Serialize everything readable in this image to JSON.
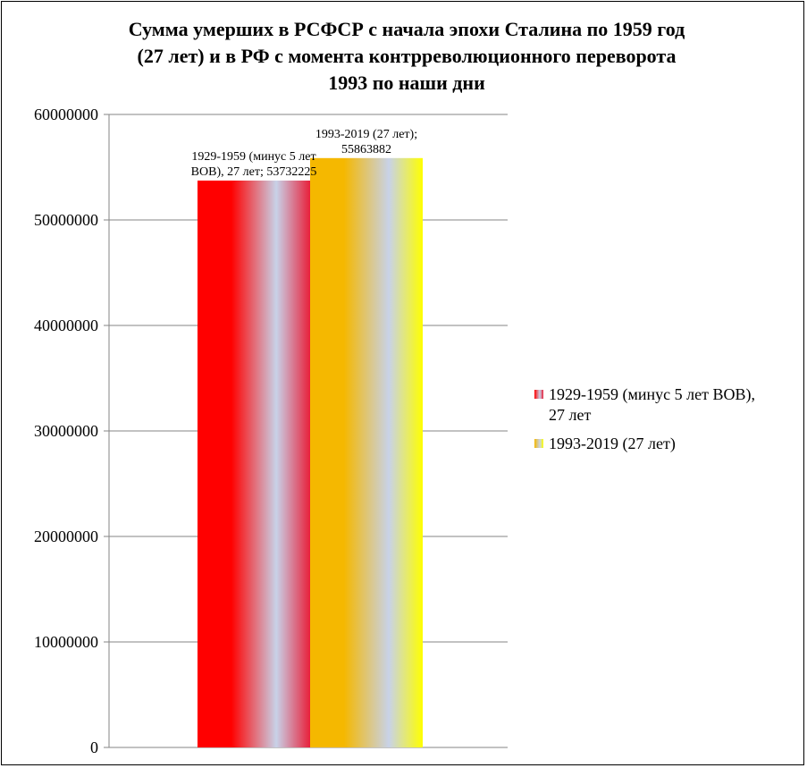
{
  "title_lines": [
    "Сумма умерших в РСФСР с начала эпохи Сталина по 1959 год",
    "(27 лет) и в РФ с момента контрреволюционного переворота",
    "1993 по наши дни"
  ],
  "chart_data": {
    "type": "bar",
    "title": "Сумма умерших в РСФСР с начала эпохи Сталина по 1959 год (27 лет) и в РФ с момента контрреволюционного переворота 1993 по наши дни",
    "ylim": [
      0,
      60000000
    ],
    "yticks": [
      "0",
      "10000000",
      "20000000",
      "30000000",
      "40000000",
      "50000000",
      "60000000"
    ],
    "grid": true,
    "legend_position": "right",
    "series": [
      {
        "name": "1929-1959 (минус 5 лет ВОВ), 27 лет",
        "value": 53732225,
        "label_lines": [
          "1929-1959 (минус 5 лет",
          "ВОВ), 27 лет; 53732225"
        ],
        "colors": [
          "#ff0000",
          "#c8d2e8",
          "#e8203a"
        ]
      },
      {
        "name": "1993-2019 (27 лет)",
        "value": 55863882,
        "label_lines": [
          "1993-2019 (27 лет);",
          "55863882"
        ],
        "colors": [
          "#f5b800",
          "#c8d2e8",
          "#ffff00"
        ]
      }
    ]
  },
  "legend": {
    "items": [
      {
        "lines": [
          "1929-1959 (минус 5 лет ВОВ),",
          "27 лет"
        ],
        "colors": [
          "#ff0000",
          "#c8d2e8",
          "#e8203a"
        ]
      },
      {
        "lines": [
          "1993-2019 (27 лет)"
        ],
        "colors": [
          "#f5b800",
          "#c8d2e8",
          "#ffff00"
        ]
      }
    ]
  }
}
